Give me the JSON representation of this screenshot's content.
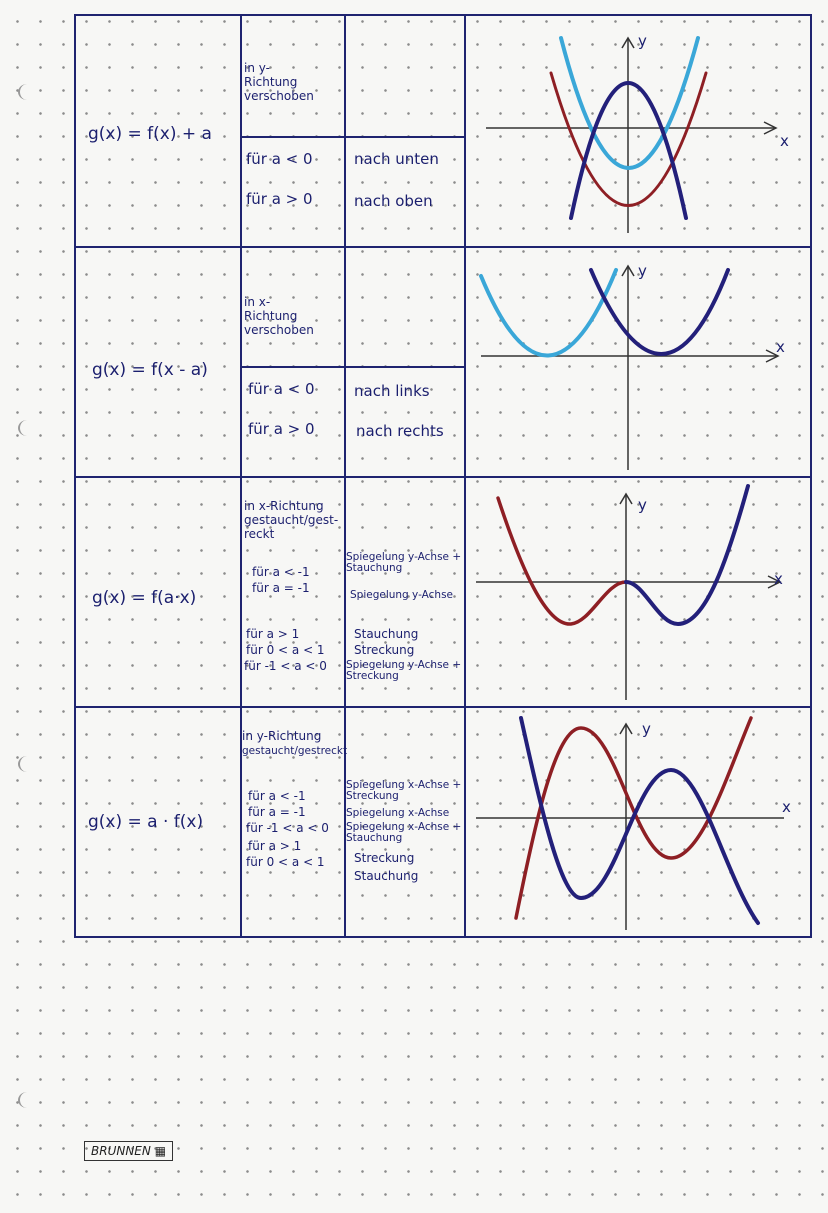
{
  "rows": [
    {
      "formula": "g(x) = f(x) + a",
      "direction": [
        "in y-",
        "Richtung",
        "verschoben"
      ],
      "conditions": [
        "für a < 0",
        "für a > 0"
      ],
      "effects": [
        "nach unten",
        "nach oben"
      ]
    },
    {
      "formula": "g(x) = f(x - a)",
      "direction": [
        "in x-",
        "Richtung",
        "verschoben"
      ],
      "conditions": [
        "für a < 0",
        "für a > 0"
      ],
      "effects": [
        "nach links",
        "nach rechts"
      ]
    },
    {
      "formula": "g(x) = f(a·x)",
      "direction": [
        "in x-Richtung",
        "gestaucht/gest-",
        "reckt"
      ],
      "conditions": [
        "für a < -1",
        "für a = -1",
        "für a > 1",
        "für 0 < a < 1",
        "für -1 < a < 0"
      ],
      "effects": [
        "Spiegelung y-Achse + Stauchung",
        "Spiegelung y-Achse",
        "Stauchung",
        "Streckung",
        "Spiegelung y-Achse + Streckung"
      ]
    },
    {
      "formula": "g(x) = a · f(x)",
      "direction": [
        "in y-Richtung",
        "gestaucht/gestreckt"
      ],
      "conditions": [
        "für a < -1",
        "für a = -1",
        "für -1 < a < 0",
        "für a > 1",
        "für 0 < a < 1"
      ],
      "effects": [
        "Spiegelung x-Achse + Streckung",
        "Spiegelung x-Achse",
        "Spiegelung x-Achse + Stauchung",
        "Streckung",
        "Stauchung"
      ]
    }
  ],
  "graph_labels": {
    "x": "x",
    "y": "y"
  },
  "brand": "BRUNNEN",
  "colors": {
    "ink": "#1f2470",
    "light_blue": "#3aa7d8",
    "dark_red": "#8e1f24",
    "navy": "#23207a"
  }
}
